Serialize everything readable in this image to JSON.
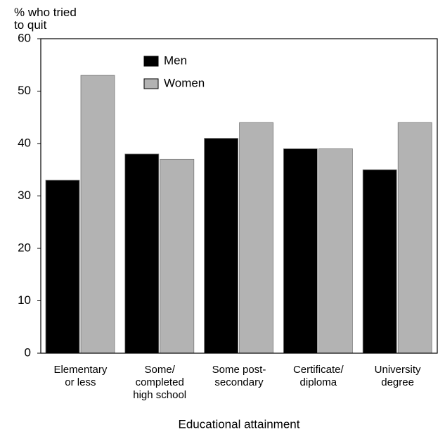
{
  "chart_data": {
    "type": "bar",
    "y_label": "% who tried\nto quit",
    "x_label": "Educational attainment",
    "categories": [
      "Elementary\nor less",
      "Some/\ncompleted\nhigh school",
      "Some post-\nsecondary",
      "Certificate/\ndiploma",
      "University\ndegree"
    ],
    "series": [
      {
        "name": "Men",
        "color": "#000000",
        "values": [
          33,
          38,
          41,
          39,
          35
        ]
      },
      {
        "name": "Women",
        "color": "#b3b3b3",
        "values": [
          53,
          37,
          44,
          39,
          44
        ]
      }
    ],
    "ylim": [
      0,
      60
    ],
    "yticks": [
      0,
      10,
      20,
      30,
      40,
      50,
      60
    ]
  }
}
